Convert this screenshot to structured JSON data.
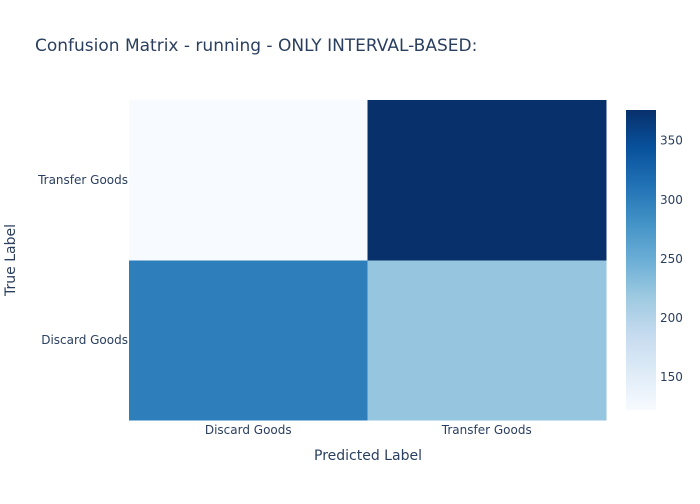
{
  "chart_data": {
    "type": "heatmap",
    "title": "Confusion Matrix - running - ONLY INTERVAL-BASED:",
    "xlabel": "Predicted Label",
    "ylabel": "True Label",
    "x_categories": [
      "Discard Goods",
      "Transfer Goods"
    ],
    "y_categories": [
      "Discard Goods",
      "Transfer Goods"
    ],
    "z": [
      [
        300,
        222
      ],
      [
        122,
        376
      ]
    ],
    "colorscale": "Blues",
    "zrange": [
      122,
      376
    ],
    "colorbar_ticks": [
      150,
      200,
      250,
      300,
      350
    ]
  }
}
